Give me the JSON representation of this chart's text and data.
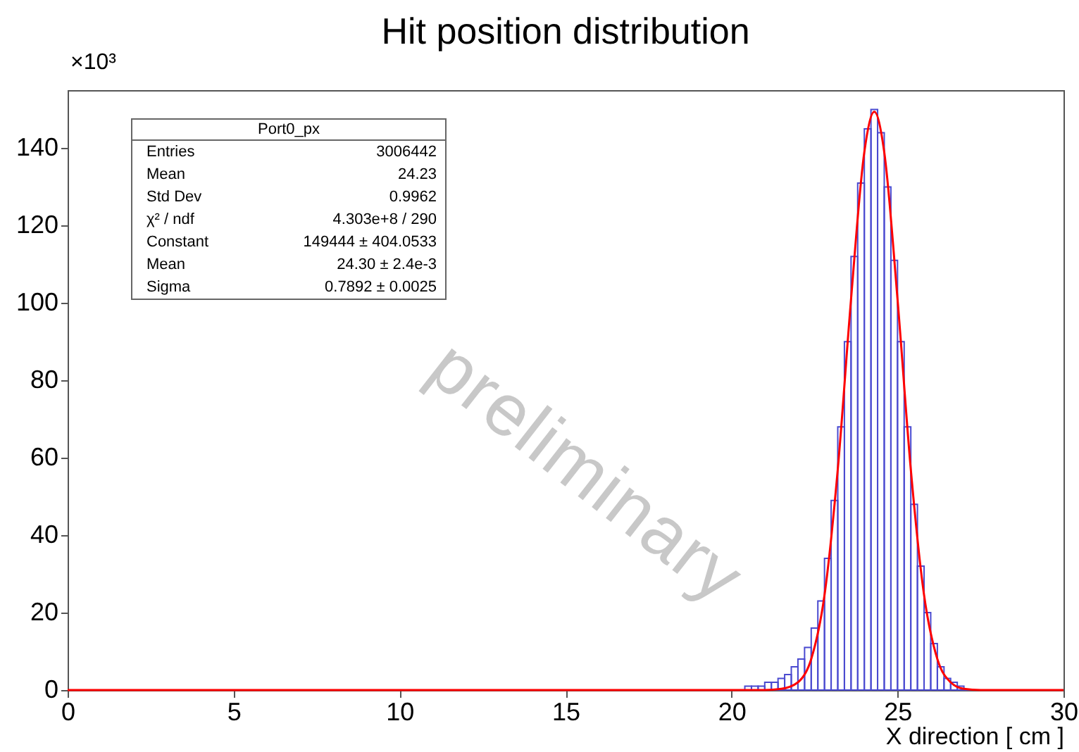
{
  "chart_data": {
    "type": "histogram",
    "title": "Hit position distribution",
    "xlabel": "X direction [ cm ]",
    "bins": [
      0,
      20,
      20.2,
      20.4,
      20.6,
      20.8,
      21,
      21.2,
      21.4,
      21.6,
      21.8,
      22,
      22.2,
      22.4,
      22.6,
      22.8,
      23,
      23.2,
      23.4,
      23.6,
      23.8,
      24,
      24.2,
      24.4,
      24.6,
      24.8,
      25,
      25.2,
      25.4,
      25.6,
      25.8,
      26,
      26.2,
      26.4,
      26.6,
      26.8,
      27,
      27.2,
      27.4,
      27.6,
      27.8,
      28,
      30
    ],
    "values": [
      0,
      0,
      0,
      1,
      1,
      1,
      2,
      2,
      3,
      4,
      6,
      8,
      11,
      16,
      23,
      34,
      49,
      68,
      90,
      112,
      131,
      145,
      150,
      144,
      130,
      111,
      90,
      68,
      48,
      32,
      20,
      12,
      6,
      3,
      2,
      1,
      0,
      0,
      0,
      0,
      0,
      0
    ],
    "color": "#4a4ad0",
    "series": [
      {
        "type": "line",
        "color": "#ff0000",
        "x": [
          0,
          20,
          21,
          21.5,
          22,
          22.4,
          22.8,
          23.2,
          23.6,
          24,
          24.3,
          24.6,
          25,
          25.4,
          25.8,
          26.2,
          26.6,
          27,
          27.5,
          28,
          30
        ],
        "values": [
          0,
          0,
          0,
          0.3,
          2,
          8,
          24.5,
          57,
          101,
          139,
          149.4,
          139,
          101,
          57,
          24.5,
          8,
          2,
          0.3,
          0,
          0,
          0
        ]
      }
    ],
    "xlim": [
      0,
      30
    ],
    "xticks": [
      0,
      5,
      10,
      15,
      20,
      25,
      30
    ],
    "ylim": [
      0,
      155
    ],
    "yticks": [
      0,
      20,
      40,
      60,
      80,
      100,
      120,
      140
    ],
    "annotations": [
      "×10³",
      "preliminary",
      "Port0_px",
      "Entries",
      "3006442",
      "Mean",
      "24.23",
      "Std Dev",
      "0.9962",
      "χ² / ndf",
      "4.303e+8 / 290",
      "Constant",
      "149444 ± 404.0533",
      "Mean",
      "24.30 ± 2.4e-3",
      "Sigma",
      "0.7892 ± 0.0025"
    ]
  }
}
